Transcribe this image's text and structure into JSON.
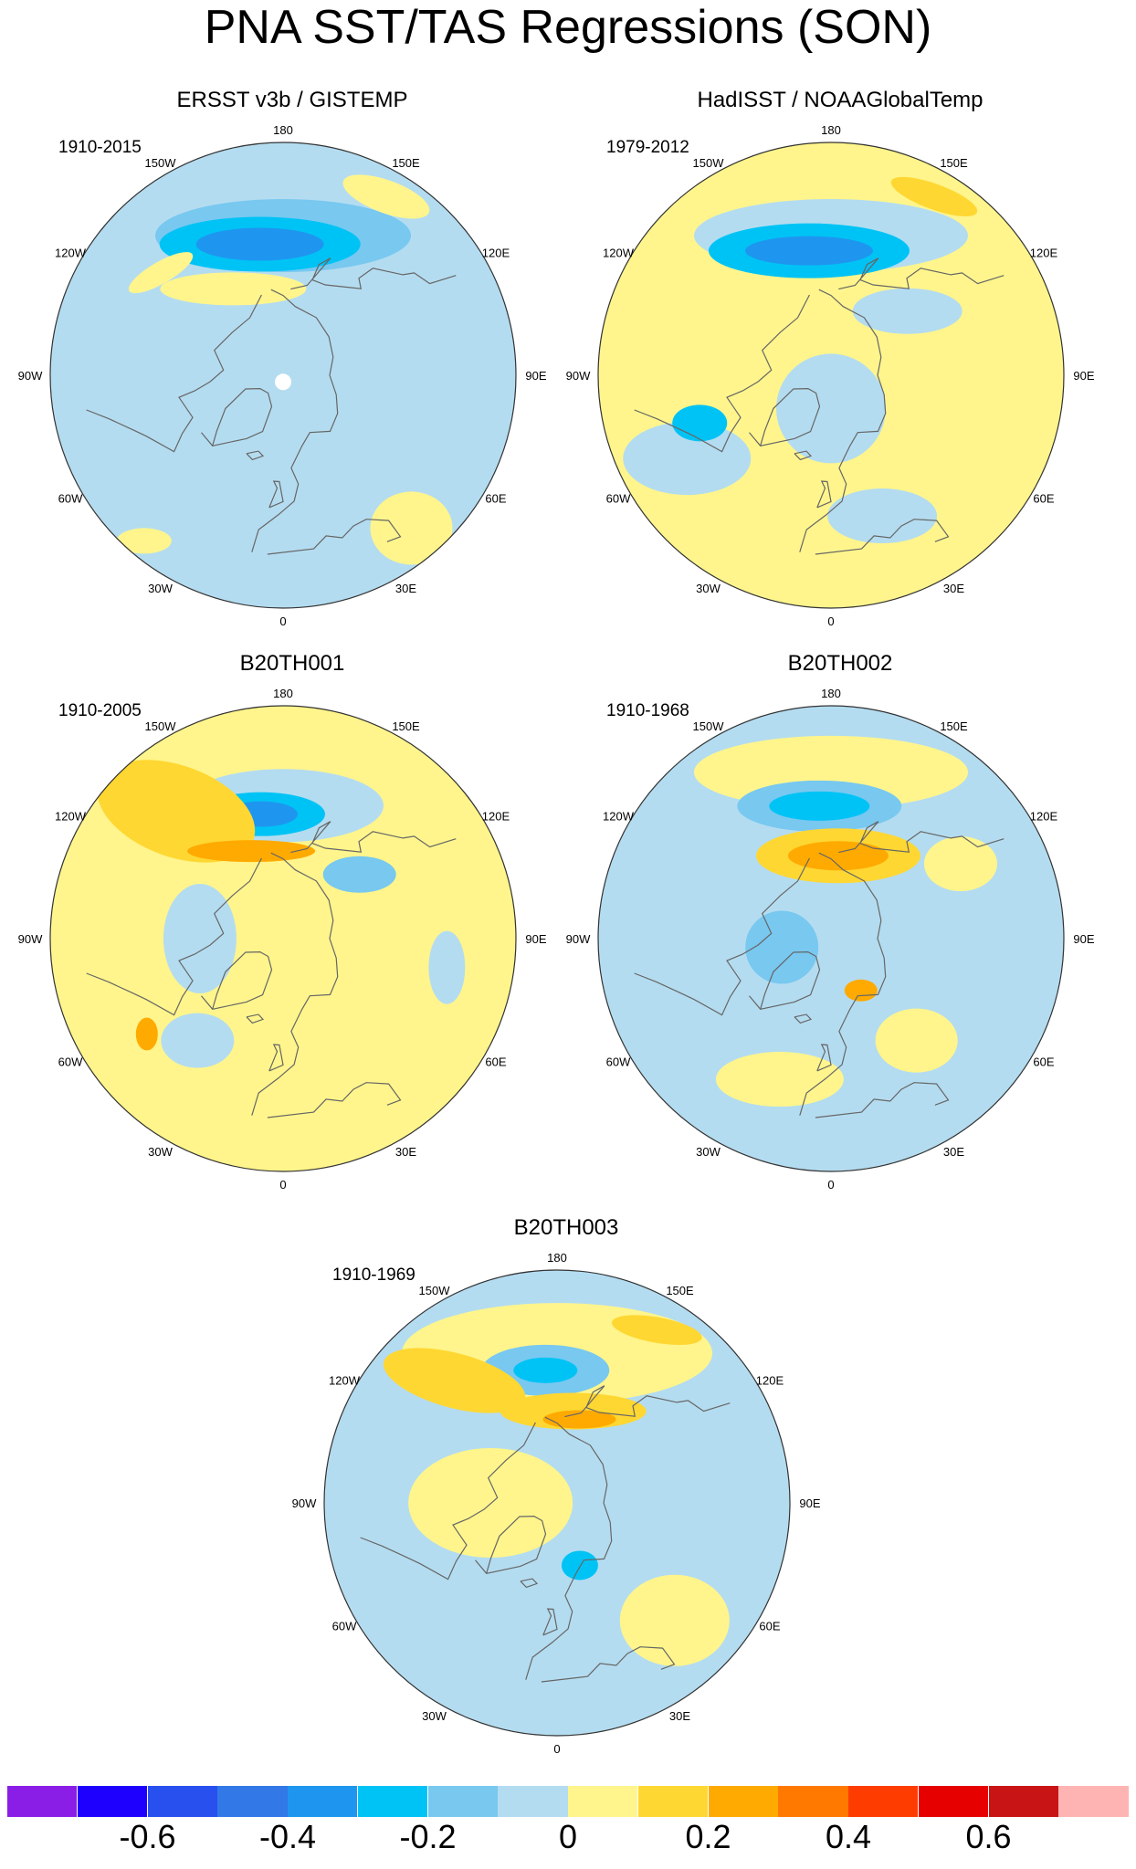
{
  "title": "PNA SST/TAS Regressions (SON)",
  "panels": [
    {
      "title": "ERSST v3b / GISTEMP",
      "period": "1910-2015"
    },
    {
      "title": "HadISST / NOAAGlobalTemp",
      "period": "1979-2012"
    },
    {
      "title": "B20TH001",
      "period": "1910-2005"
    },
    {
      "title": "B20TH002",
      "period": "1910-1968"
    },
    {
      "title": "B20TH003",
      "period": "1910-1969"
    }
  ],
  "longitude_labels": [
    "180",
    "150E",
    "120E",
    "90E",
    "60E",
    "30E",
    "0",
    "30W",
    "60W",
    "90W",
    "120W",
    "150W"
  ],
  "colorbar": {
    "colors": [
      "#8a1ee6",
      "#1e00ff",
      "#2850ef",
      "#3278e6",
      "#1e96f0",
      "#00c3f5",
      "#78c8f0",
      "#b4dcf0",
      "#fff58c",
      "#ffd732",
      "#ffaa00",
      "#ff7800",
      "#ff3c00",
      "#e60000",
      "#c81414",
      "#ffb4b4"
    ],
    "tick_labels": [
      "-0.6",
      "-0.4",
      "-0.2",
      "0",
      "0.2",
      "0.4",
      "0.6"
    ],
    "tick_values": [
      -0.6,
      -0.4,
      -0.2,
      0,
      0.2,
      0.4,
      0.6
    ],
    "min": -0.8,
    "max": 0.8
  },
  "fields": {
    "land_outline_color": "#666666",
    "missing_color": "#ffffff"
  }
}
